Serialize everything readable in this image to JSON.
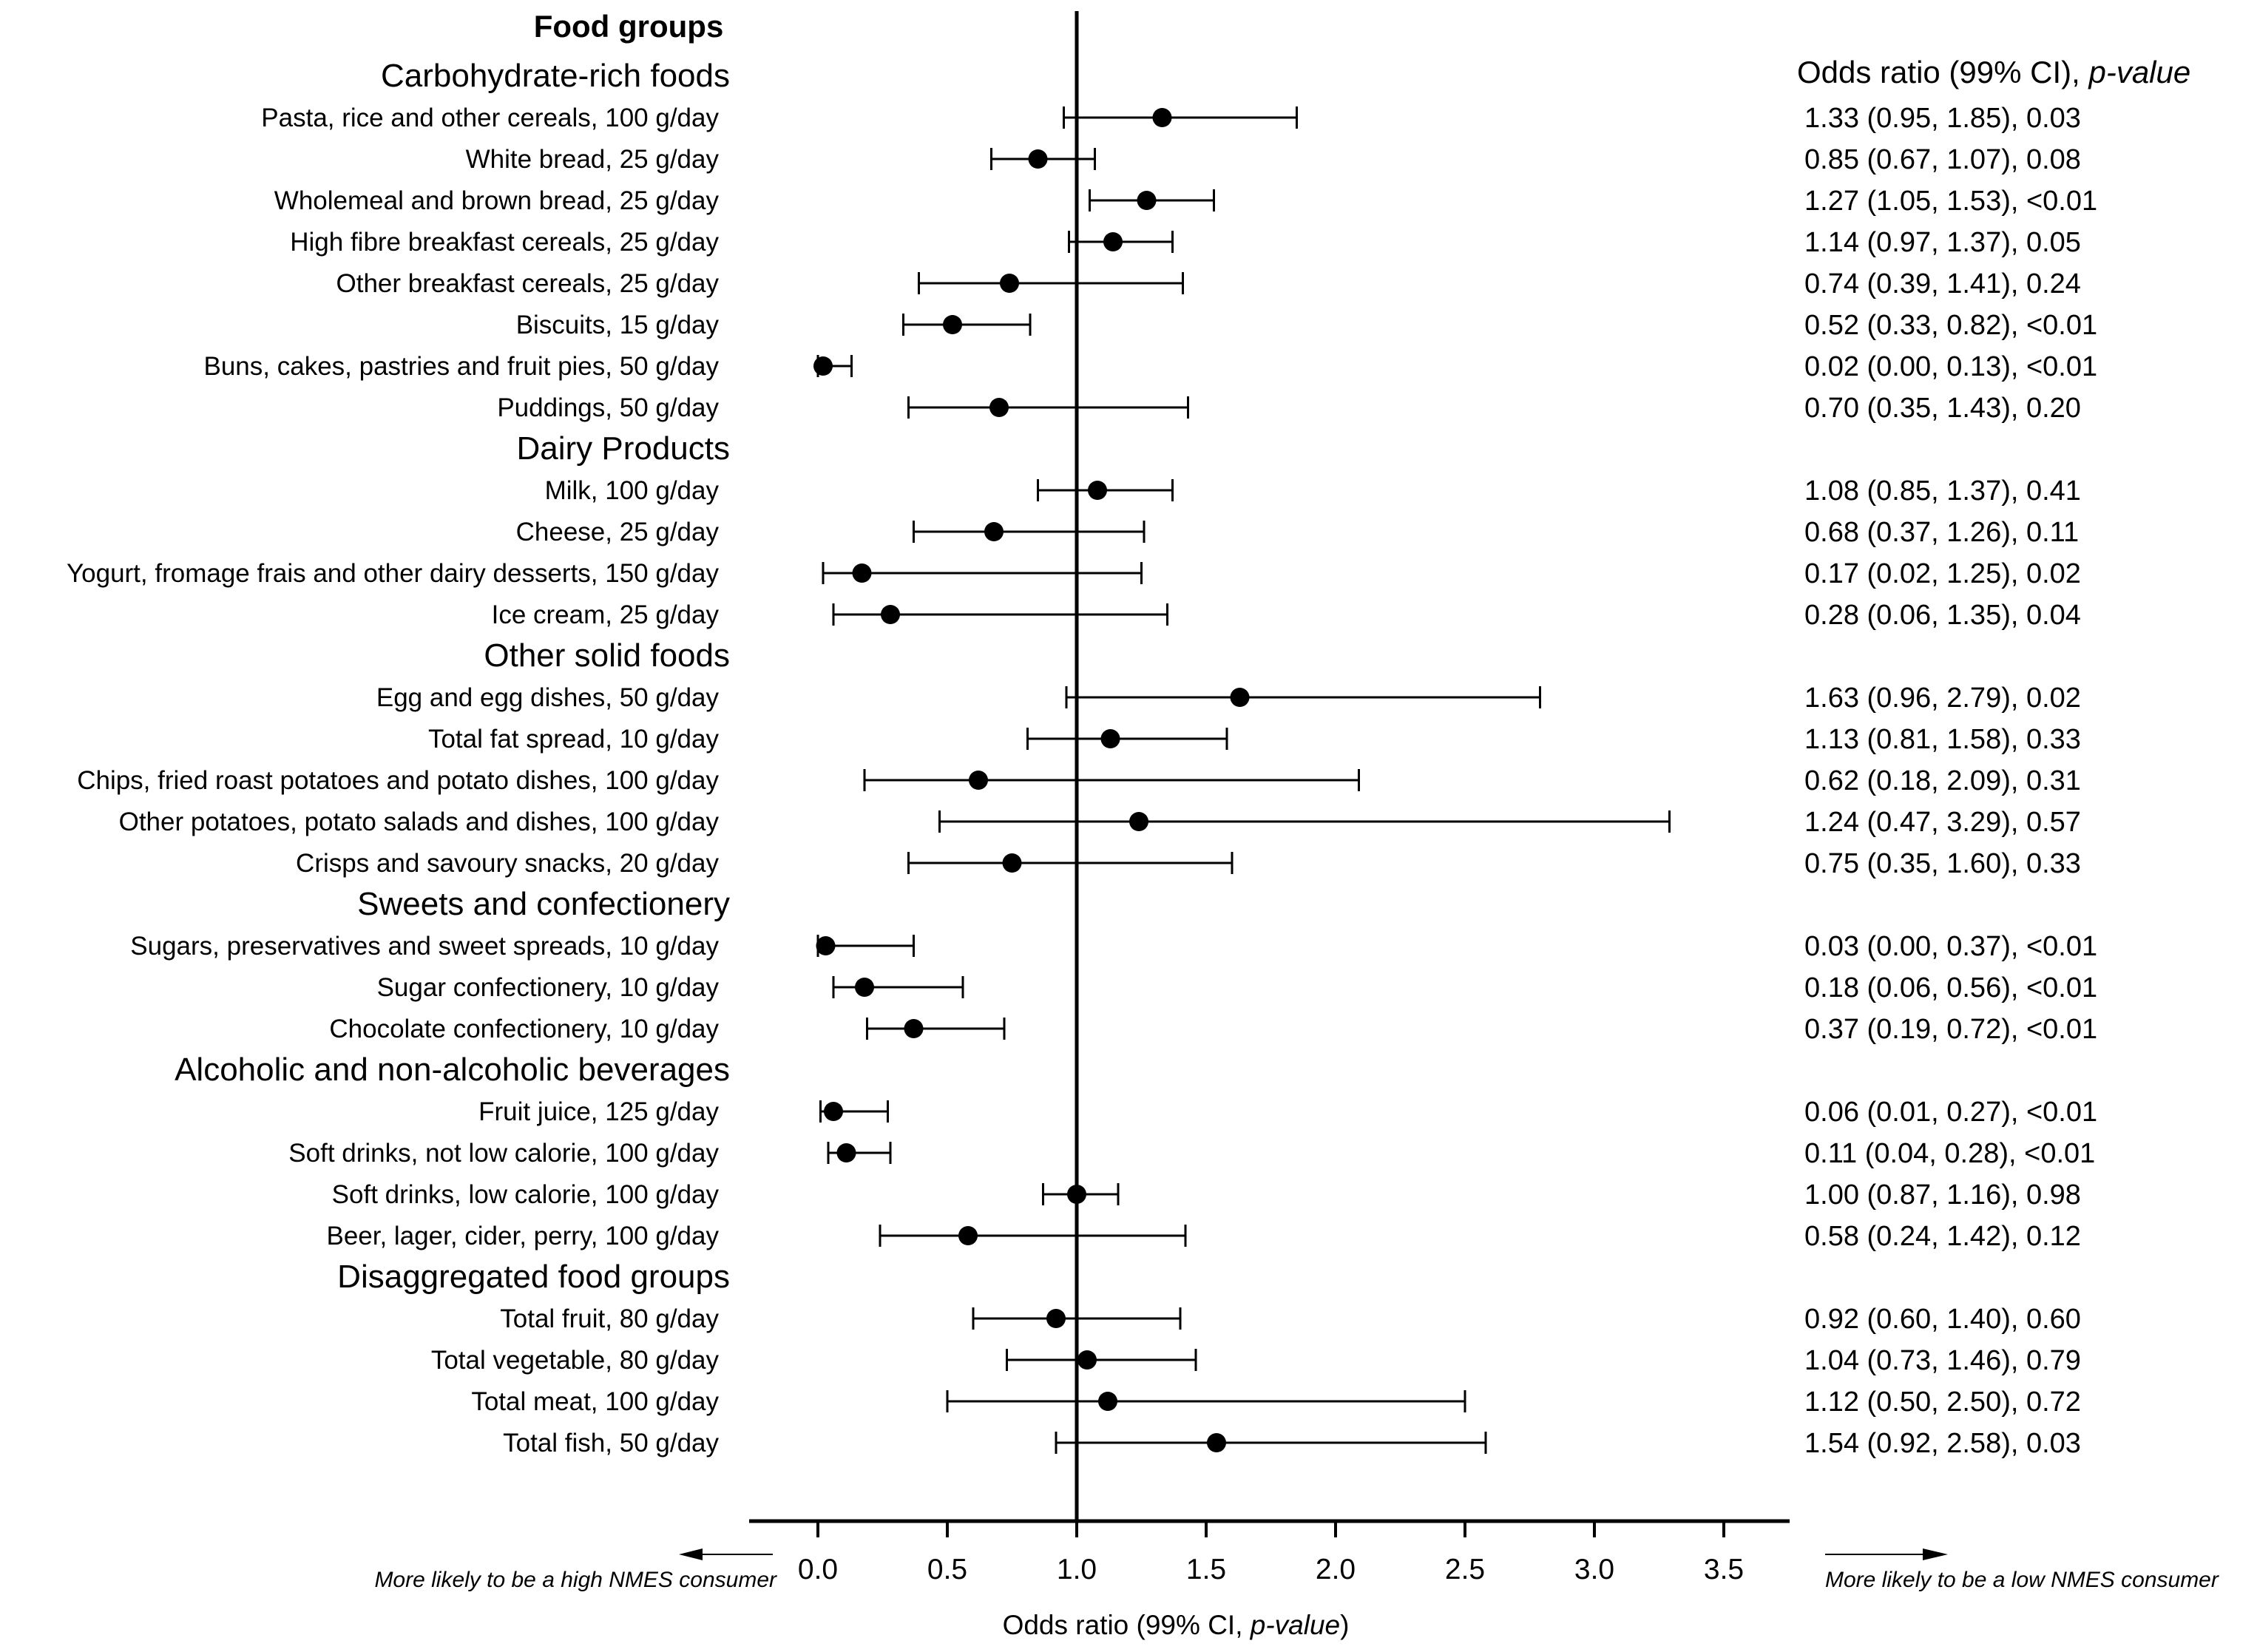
{
  "chart_data": {
    "type": "forest",
    "header": "Food groups",
    "or_header_main": "Odds ratio (99% CI), ",
    "or_header_italic": "p-value",
    "xlabel_main": "Odds ratio (99% CI, ",
    "xlabel_italic": "p-value",
    "xlabel_end": ")",
    "xlim": [
      -0.25,
      3.8
    ],
    "reference": 1.0,
    "ticks": [
      "0.0",
      "0.5",
      "1.0",
      "1.5",
      "2.0",
      "2.5",
      "3.0",
      "3.5"
    ],
    "arrow_left": "More likely to be a high NMES consumer",
    "arrow_right": "More likely to be a low NMES consumer",
    "groups": [
      {
        "name": "Carbohydrate-rich foods",
        "items": [
          {
            "label": "Pasta, rice and other cereals, 100 g/day",
            "or": 1.33,
            "lo": 0.95,
            "hi": 1.85,
            "text": "1.33 (0.95, 1.85), 0.03"
          },
          {
            "label": "White bread, 25 g/day",
            "or": 0.85,
            "lo": 0.67,
            "hi": 1.07,
            "text": "0.85 (0.67, 1.07), 0.08"
          },
          {
            "label": "Wholemeal and brown bread, 25 g/day",
            "or": 1.27,
            "lo": 1.05,
            "hi": 1.53,
            "text": "1.27 (1.05, 1.53), <0.01"
          },
          {
            "label": "High fibre breakfast cereals, 25 g/day",
            "or": 1.14,
            "lo": 0.97,
            "hi": 1.37,
            "text": "1.14 (0.97, 1.37), 0.05"
          },
          {
            "label": "Other breakfast cereals, 25 g/day",
            "or": 0.74,
            "lo": 0.39,
            "hi": 1.41,
            "text": "0.74 (0.39, 1.41), 0.24"
          },
          {
            "label": "Biscuits, 15 g/day",
            "or": 0.52,
            "lo": 0.33,
            "hi": 0.82,
            "text": "0.52 (0.33, 0.82), <0.01"
          },
          {
            "label": "Buns, cakes, pastries and fruit pies, 50 g/day",
            "or": 0.02,
            "lo": 0.0,
            "hi": 0.13,
            "text": "0.02 (0.00, 0.13), <0.01"
          },
          {
            "label": "Puddings, 50 g/day",
            "or": 0.7,
            "lo": 0.35,
            "hi": 1.43,
            "text": "0.70 (0.35, 1.43), 0.20"
          }
        ]
      },
      {
        "name": "Dairy Products",
        "items": [
          {
            "label": "Milk, 100 g/day",
            "or": 1.08,
            "lo": 0.85,
            "hi": 1.37,
            "text": "1.08 (0.85, 1.37), 0.41"
          },
          {
            "label": "Cheese, 25 g/day",
            "or": 0.68,
            "lo": 0.37,
            "hi": 1.26,
            "text": "0.68 (0.37, 1.26), 0.11"
          },
          {
            "label": "Yogurt, fromage frais and other dairy desserts, 150 g/day",
            "or": 0.17,
            "lo": 0.02,
            "hi": 1.25,
            "text": "0.17 (0.02, 1.25), 0.02"
          },
          {
            "label": "Ice cream, 25 g/day",
            "or": 0.28,
            "lo": 0.06,
            "hi": 1.35,
            "text": "0.28 (0.06, 1.35), 0.04"
          }
        ]
      },
      {
        "name": "Other solid foods",
        "items": [
          {
            "label": "Egg and egg dishes, 50 g/day",
            "or": 1.63,
            "lo": 0.96,
            "hi": 2.79,
            "text": "1.63 (0.96, 2.79), 0.02"
          },
          {
            "label": "Total fat spread, 10 g/day",
            "or": 1.13,
            "lo": 0.81,
            "hi": 1.58,
            "text": "1.13 (0.81, 1.58), 0.33"
          },
          {
            "label": "Chips, fried roast potatoes and potato dishes, 100 g/day",
            "or": 0.62,
            "lo": 0.18,
            "hi": 2.09,
            "text": "0.62 (0.18, 2.09), 0.31"
          },
          {
            "label": "Other potatoes, potato salads and dishes, 100 g/day",
            "or": 1.24,
            "lo": 0.47,
            "hi": 3.29,
            "text": "1.24 (0.47, 3.29), 0.57"
          },
          {
            "label": "Crisps and savoury snacks, 20 g/day",
            "or": 0.75,
            "lo": 0.35,
            "hi": 1.6,
            "text": "0.75 (0.35, 1.60), 0.33"
          }
        ]
      },
      {
        "name": "Sweets and confectionery",
        "items": [
          {
            "label": "Sugars, preservatives and sweet spreads, 10 g/day",
            "or": 0.03,
            "lo": 0.0,
            "hi": 0.37,
            "text": "0.03 (0.00, 0.37), <0.01"
          },
          {
            "label": "Sugar confectionery, 10 g/day",
            "or": 0.18,
            "lo": 0.06,
            "hi": 0.56,
            "text": "0.18 (0.06, 0.56), <0.01"
          },
          {
            "label": "Chocolate confectionery, 10 g/day",
            "or": 0.37,
            "lo": 0.19,
            "hi": 0.72,
            "text": "0.37 (0.19, 0.72), <0.01"
          }
        ]
      },
      {
        "name": "Alcoholic and non-alcoholic beverages",
        "items": [
          {
            "label": "Fruit juice, 125 g/day",
            "or": 0.06,
            "lo": 0.01,
            "hi": 0.27,
            "text": "0.06 (0.01, 0.27), <0.01"
          },
          {
            "label": "Soft drinks, not low calorie, 100 g/day",
            "or": 0.11,
            "lo": 0.04,
            "hi": 0.28,
            "text": "0.11 (0.04, 0.28), <0.01"
          },
          {
            "label": "Soft drinks, low calorie, 100 g/day",
            "or": 1.0,
            "lo": 0.87,
            "hi": 1.16,
            "text": "1.00 (0.87, 1.16), 0.98"
          },
          {
            "label": "Beer, lager, cider, perry, 100 g/day",
            "or": 0.58,
            "lo": 0.24,
            "hi": 1.42,
            "text": "0.58 (0.24, 1.42), 0.12"
          }
        ]
      },
      {
        "name": "Disaggregated food groups",
        "items": [
          {
            "label": "Total fruit, 80 g/day",
            "or": 0.92,
            "lo": 0.6,
            "hi": 1.4,
            "text": "0.92 (0.60, 1.40), 0.60"
          },
          {
            "label": "Total vegetable, 80 g/day",
            "or": 1.04,
            "lo": 0.73,
            "hi": 1.46,
            "text": "1.04 (0.73, 1.46), 0.79"
          },
          {
            "label": "Total meat, 100 g/day",
            "or": 1.12,
            "lo": 0.5,
            "hi": 2.5,
            "text": "1.12 (0.50, 2.50), 0.72"
          },
          {
            "label": "Total fish, 50 g/day",
            "or": 1.54,
            "lo": 0.92,
            "hi": 2.58,
            "text": "1.54 (0.92, 2.58), 0.03"
          }
        ]
      }
    ]
  }
}
